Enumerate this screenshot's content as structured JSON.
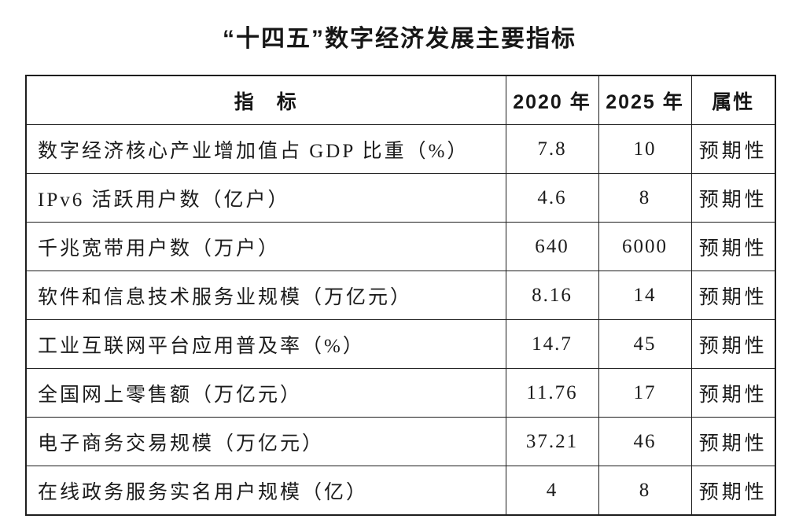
{
  "page": {
    "title": "“十四五”数字经济发展主要指标"
  },
  "table": {
    "headers": [
      "指　标",
      "2020 年",
      "2025 年",
      "属性"
    ],
    "rows": [
      {
        "indicator": "数字经济核心产业增加值占 GDP 比重（%）",
        "y2020": "7.8",
        "y2025": "10",
        "attr": "预期性"
      },
      {
        "indicator": "IPv6 活跃用户数（亿户）",
        "y2020": "4.6",
        "y2025": "8",
        "attr": "预期性"
      },
      {
        "indicator": "千兆宽带用户数（万户）",
        "y2020": "640",
        "y2025": "6000",
        "attr": "预期性"
      },
      {
        "indicator": "软件和信息技术服务业规模（万亿元）",
        "y2020": "8.16",
        "y2025": "14",
        "attr": "预期性"
      },
      {
        "indicator": "工业互联网平台应用普及率（%）",
        "y2020": "14.7",
        "y2025": "45",
        "attr": "预期性"
      },
      {
        "indicator": "全国网上零售额（万亿元）",
        "y2020": "11.76",
        "y2025": "17",
        "attr": "预期性"
      },
      {
        "indicator": "电子商务交易规模（万亿元）",
        "y2020": "37.21",
        "y2025": "46",
        "attr": "预期性"
      },
      {
        "indicator": "在线政务服务实名用户规模（亿）",
        "y2020": "4",
        "y2025": "8",
        "attr": "预期性"
      }
    ]
  },
  "colors": {
    "text": "#1b1b1b",
    "border": "#1e1e1e",
    "background": "#ffffff"
  }
}
